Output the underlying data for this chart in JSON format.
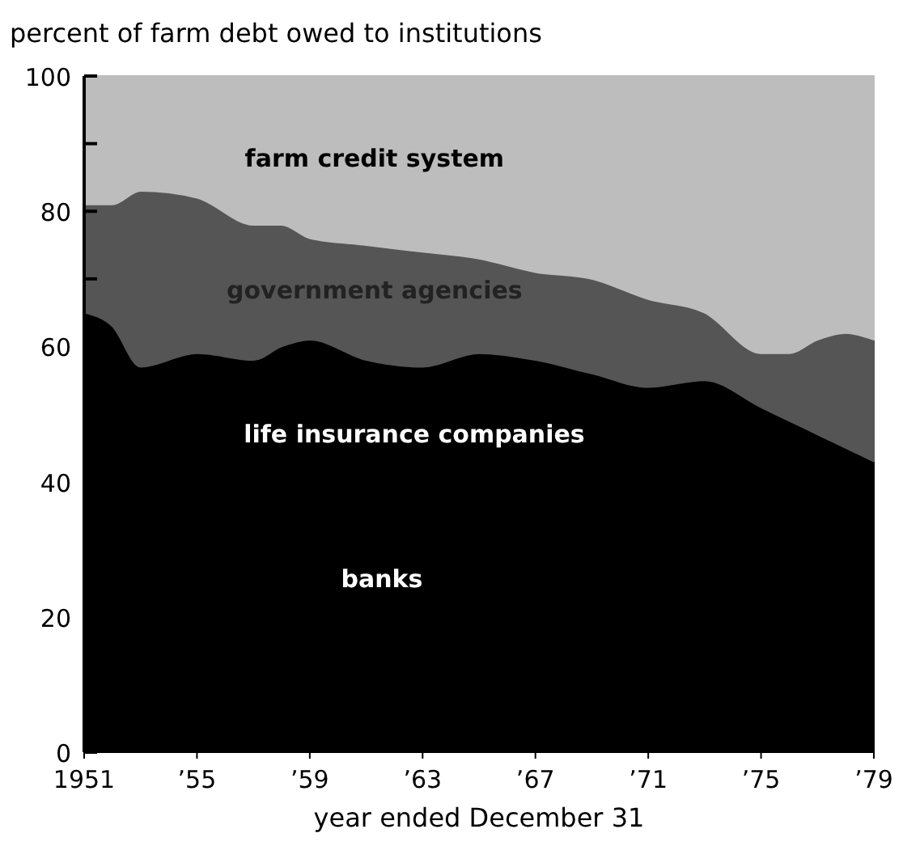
{
  "chart_data": {
    "type": "area",
    "stacked": true,
    "ylabel": "percent of farm debt owed to institutions",
    "xlabel": "year ended December 31",
    "x": [
      1951,
      1952,
      1953,
      1955,
      1957,
      1958,
      1959,
      1961,
      1963,
      1965,
      1967,
      1969,
      1971,
      1973,
      1975,
      1976,
      1977,
      1978,
      1979
    ],
    "series": [
      {
        "color": "#000000",
        "values": [
          65,
          63,
          57,
          59,
          58,
          60,
          61,
          58,
          57,
          59,
          58,
          56,
          54,
          55,
          51,
          49,
          47,
          45,
          43
        ]
      },
      {
        "name": "government agencies",
        "color": "#555555",
        "values": [
          16,
          18,
          26,
          23,
          20,
          18,
          15,
          17,
          17,
          14,
          13,
          14,
          13,
          10,
          8,
          10,
          14,
          17,
          18
        ]
      },
      {
        "name": "farm credit system",
        "color": "#bdbdbd",
        "values": [
          19,
          19,
          17,
          18,
          22,
          22,
          24,
          25,
          26,
          27,
          29,
          30,
          33,
          35,
          41,
          41,
          39,
          38,
          39
        ]
      }
    ],
    "annotations": [
      "life insurance companies",
      "banks"
    ],
    "xlim": [
      1951,
      1979
    ],
    "xticks": [
      1951,
      {
        "value": 1955,
        "label": "’55"
      },
      {
        "value": 1959,
        "label": "’59"
      },
      {
        "value": 1963,
        "label": "’63"
      },
      {
        "value": 1967,
        "label": "’67"
      },
      {
        "value": 1971,
        "label": "’71"
      },
      {
        "value": 1975,
        "label": "’75"
      },
      {
        "value": 1979,
        "label": "’79"
      }
    ],
    "ylim": [
      0,
      100
    ],
    "yticks": [
      0,
      {
        "value": 10,
        "label": null
      },
      20,
      {
        "value": 30,
        "label": null
      },
      40,
      {
        "value": 50,
        "label": null
      },
      60,
      {
        "value": 70,
        "label": null
      },
      80,
      {
        "value": 90,
        "label": null
      },
      100
    ]
  }
}
